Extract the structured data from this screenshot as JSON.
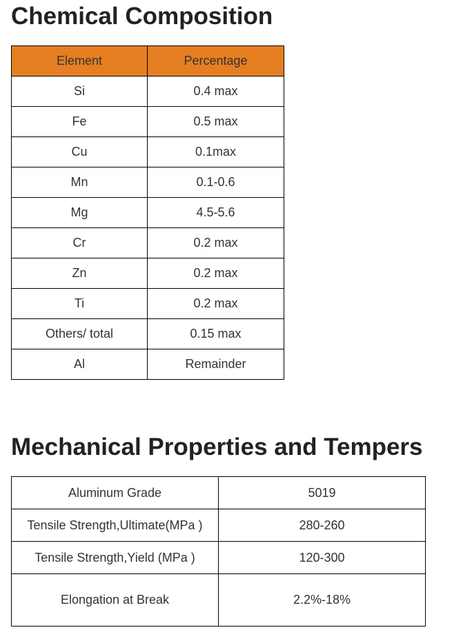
{
  "chemical": {
    "title": "Chemical Composition",
    "header_color": "#E67E22",
    "headers": [
      "Element",
      "Percentage"
    ],
    "rows": [
      [
        "Si",
        "0.4 max"
      ],
      [
        "Fe",
        "0.5 max"
      ],
      [
        "Cu",
        "0.1max"
      ],
      [
        "Mn",
        "0.1-0.6"
      ],
      [
        "Mg",
        "4.5-5.6"
      ],
      [
        "Cr",
        "0.2 max"
      ],
      [
        "Zn",
        "0.2 max"
      ],
      [
        "Ti",
        "0.2 max"
      ],
      [
        "Others/ total",
        "0.15 max"
      ],
      [
        "Al",
        "Remainder"
      ]
    ]
  },
  "mechanical": {
    "title": "Mechanical Properties and Tempers",
    "rows": [
      [
        "Aluminum Grade",
        "5019"
      ],
      [
        "Tensile Strength,Ultimate(MPa )",
        "280-260"
      ],
      [
        "Tensile Strength,Yield  (MPa )",
        "120-300"
      ],
      [
        "Elongation at Break",
        "2.2%-18%"
      ]
    ]
  }
}
